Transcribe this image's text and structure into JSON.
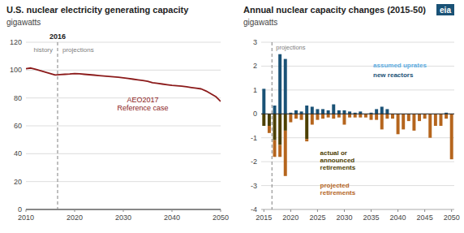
{
  "chart_data": [
    {
      "type": "line",
      "title": "U.S. nuclear electricity generating capacity",
      "subtitle": "gigawatts",
      "x": [
        2010,
        2011,
        2012,
        2013,
        2014,
        2015,
        2016,
        2017,
        2018,
        2019,
        2020,
        2021,
        2022,
        2023,
        2024,
        2025,
        2026,
        2027,
        2028,
        2029,
        2030,
        2031,
        2032,
        2033,
        2034,
        2035,
        2036,
        2037,
        2038,
        2039,
        2040,
        2041,
        2042,
        2043,
        2044,
        2045,
        2046,
        2047,
        2048,
        2049,
        2050
      ],
      "series": [
        {
          "color": "#8b1a1a",
          "values": [
            101,
            101.5,
            100.5,
            99.5,
            98.5,
            97.5,
            96.5,
            96.8,
            97.0,
            97.2,
            97.5,
            97.3,
            97.0,
            96.7,
            96.4,
            96.1,
            95.8,
            95.5,
            95.2,
            94.9,
            94.5,
            94.0,
            93.5,
            93.0,
            92.5,
            92.0,
            91.0,
            90.5,
            90.0,
            89.5,
            89.0,
            88.8,
            88.5,
            88.0,
            87.5,
            87.0,
            86.5,
            85.0,
            83.0,
            81.0,
            77.5
          ]
        }
      ],
      "vline": 2016.5,
      "annotations": [
        "2016",
        "history",
        "projections",
        "AEO2017\nReference case"
      ],
      "xlim": [
        2010,
        2050
      ],
      "xticks": [
        2010,
        2020,
        2030,
        2040,
        2050
      ],
      "ylim": [
        0,
        120
      ],
      "yticks": [
        0,
        20,
        40,
        60,
        80,
        100,
        120
      ],
      "grid": true
    },
    {
      "type": "bar",
      "stacked": true,
      "title": "Annual nuclear capacity changes (2015-50)",
      "subtitle": "gigawatts",
      "x": [
        2015,
        2016,
        2017,
        2018,
        2019,
        2020,
        2021,
        2022,
        2023,
        2024,
        2025,
        2026,
        2027,
        2028,
        2029,
        2030,
        2031,
        2032,
        2033,
        2034,
        2035,
        2036,
        2037,
        2038,
        2039,
        2040,
        2041,
        2042,
        2043,
        2044,
        2045,
        2046,
        2047,
        2048,
        2049,
        2050
      ],
      "series": [
        {
          "name": "new reactors",
          "color": "#1a5276",
          "values": [
            1.05,
            0.0,
            0.35,
            2.5,
            2.3,
            0.05,
            0.15,
            0.1,
            0.35,
            0.3,
            0.2,
            0.2,
            0.15,
            0.4,
            0.15,
            0.15,
            0.1,
            0.05,
            0.1,
            0.0,
            0.05,
            0.2,
            0.3,
            0.2,
            0.0,
            0.0,
            0.0,
            0.0,
            0.0,
            0.0,
            0.0,
            0.0,
            0.0,
            0.0,
            0.05,
            0.0
          ]
        },
        {
          "name": "assumed uprates",
          "color": "#5dade2",
          "values": [
            0.0,
            0.0,
            0.0,
            0.0,
            0.0,
            0.0,
            0.0,
            0.0,
            0.0,
            0.0,
            0.0,
            0.0,
            0.0,
            0.0,
            0.0,
            0.0,
            0.0,
            0.0,
            0.0,
            0.0,
            0.0,
            0.0,
            0.0,
            0.0,
            0.0,
            0.0,
            0.0,
            0.0,
            0.0,
            0.0,
            0.0,
            0.0,
            0.0,
            0.0,
            0.0,
            0.0
          ]
        },
        {
          "name": "actual or\nannounced\nretirements",
          "color": "#4d4000",
          "values": [
            -0.5,
            -0.5,
            -1.1,
            -1.3,
            -0.7,
            0.0,
            0.0,
            0.0,
            -1.05,
            0.0,
            0.0,
            0.0,
            0.0,
            0.0,
            0.0,
            0.0,
            0.0,
            0.0,
            0.0,
            0.0,
            0.0,
            0.0,
            0.0,
            0.0,
            0.0,
            0.0,
            0.0,
            0.0,
            0.0,
            0.0,
            0.0,
            0.0,
            0.0,
            0.0,
            0.0,
            0.0
          ]
        },
        {
          "name": "projected\nretirements",
          "color": "#b5651d",
          "values": [
            0.0,
            -0.3,
            -0.7,
            -0.5,
            -1.9,
            -0.35,
            -0.2,
            -0.25,
            -0.1,
            -0.45,
            -0.25,
            -0.2,
            -0.15,
            -0.2,
            -0.15,
            -0.45,
            -0.15,
            -0.15,
            -0.15,
            -0.15,
            -0.25,
            -0.25,
            -0.65,
            -0.2,
            -0.2,
            -0.85,
            -0.65,
            -0.3,
            -0.7,
            -0.3,
            -0.2,
            -1.0,
            -0.5,
            -0.5,
            -0.2,
            -1.9
          ]
        }
      ],
      "vline": 2016.5,
      "annotations": [
        "projections",
        "eia"
      ],
      "xlim": [
        2014.5,
        2050.5
      ],
      "xticks": [
        2015,
        2020,
        2025,
        2030,
        2035,
        2040,
        2045,
        2050
      ],
      "ylim": [
        -4,
        3
      ],
      "yticks": [
        -4,
        -3,
        -2,
        -1,
        0,
        1,
        2,
        3
      ],
      "grid": true
    }
  ]
}
